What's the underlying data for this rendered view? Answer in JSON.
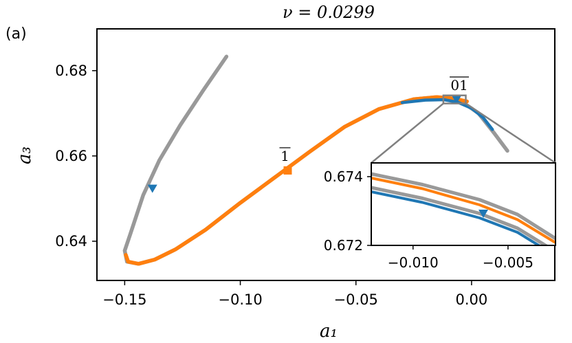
{
  "panel_label": "(a)",
  "chart_data": {
    "type": "line",
    "title": "ν = 0.0299",
    "xlabel": "a₁",
    "ylabel": "a₃",
    "xlim": [
      -0.162,
      0.036
    ],
    "ylim": [
      0.6308,
      0.6898
    ],
    "xticks": [
      -0.15,
      -0.1,
      -0.05,
      0.0
    ],
    "xtick_labels": [
      "−0.15",
      "−0.10",
      "−0.05",
      "0.00"
    ],
    "yticks": [
      0.64,
      0.66,
      0.68
    ],
    "ytick_labels": [
      "0.64",
      "0.66",
      "0.68"
    ],
    "grid": false,
    "colors": {
      "gray": "#999999",
      "orange": "#ff7f0e",
      "blue": "#1f77b4",
      "frame": "#808080"
    },
    "series": [
      {
        "color": "gray",
        "points": [
          [
            -0.106,
            0.6833
          ],
          [
            -0.116,
            0.6754
          ],
          [
            -0.126,
            0.6672
          ],
          [
            -0.135,
            0.659
          ],
          [
            -0.142,
            0.6508
          ],
          [
            -0.1475,
            0.6418
          ],
          [
            -0.15,
            0.6378
          ],
          [
            -0.149,
            0.6352
          ],
          [
            -0.144,
            0.6347
          ],
          [
            -0.137,
            0.6357
          ],
          [
            -0.128,
            0.6381
          ],
          [
            -0.115,
            0.6427
          ],
          [
            -0.1,
            0.649
          ],
          [
            -0.085,
            0.655
          ],
          [
            -0.07,
            0.661
          ],
          [
            -0.055,
            0.6668
          ],
          [
            -0.04,
            0.671
          ],
          [
            -0.025,
            0.6733
          ],
          [
            -0.015,
            0.6738
          ],
          [
            -0.005,
            0.673
          ],
          [
            0.003,
            0.67
          ],
          [
            0.01,
            0.6652
          ],
          [
            0.0155,
            0.6612
          ]
        ]
      },
      {
        "color": "orange",
        "points": [
          [
            -0.1495,
            0.6368
          ],
          [
            -0.1485,
            0.6352
          ],
          [
            -0.144,
            0.6347
          ],
          [
            -0.137,
            0.6357
          ],
          [
            -0.128,
            0.6381
          ],
          [
            -0.115,
            0.6427
          ],
          [
            -0.1,
            0.649
          ],
          [
            -0.085,
            0.655
          ],
          [
            -0.07,
            0.661
          ],
          [
            -0.055,
            0.6668
          ],
          [
            -0.04,
            0.671
          ],
          [
            -0.025,
            0.6733
          ],
          [
            -0.015,
            0.6738
          ],
          [
            -0.008,
            0.6735
          ],
          [
            -0.002,
            0.6728
          ]
        ]
      },
      {
        "color": "blue",
        "points": [
          [
            -0.03,
            0.6725
          ],
          [
            -0.02,
            0.6731
          ],
          [
            -0.012,
            0.6732
          ],
          [
            -0.006,
            0.6726
          ],
          [
            0.0,
            0.6712
          ],
          [
            0.005,
            0.669
          ],
          [
            0.009,
            0.6662
          ]
        ]
      }
    ],
    "markers": [
      {
        "shape": "triangle-down",
        "color": "blue",
        "x": -0.138,
        "y": 0.6523
      },
      {
        "shape": "square",
        "color": "orange",
        "x": -0.0795,
        "y": 0.6566,
        "label": "1"
      },
      {
        "shape": "triangle-down",
        "color": "blue",
        "x": -0.0065,
        "y": 0.6732,
        "label": "01"
      }
    ],
    "zoom_box": {
      "xlim": [
        -0.0122,
        -0.0025
      ],
      "ylim": [
        0.6723,
        0.6742
      ]
    },
    "inset": {
      "xlim": [
        -0.0122,
        -0.0025
      ],
      "ylim": [
        0.672,
        0.6744
      ],
      "xticks": [
        -0.01,
        -0.005
      ],
      "xtick_labels": [
        "−0.010",
        "−0.005"
      ],
      "yticks": [
        0.672,
        0.674
      ],
      "ytick_labels": [
        "0.672",
        "0.674"
      ],
      "series": [
        {
          "color": "gray",
          "points": [
            [
              -0.0122,
              0.67408
            ],
            [
              -0.0095,
              0.67377
            ],
            [
              -0.0065,
              0.67333
            ],
            [
              -0.0045,
              0.6729
            ],
            [
              -0.0025,
              0.6722
            ]
          ]
        },
        {
          "color": "orange",
          "points": [
            [
              -0.0122,
              0.67396
            ],
            [
              -0.0095,
              0.67365
            ],
            [
              -0.0065,
              0.67318
            ],
            [
              -0.0045,
              0.67275
            ],
            [
              -0.0025,
              0.67208
            ]
          ]
        },
        {
          "color": "gray",
          "points": [
            [
              -0.0122,
              0.67368
            ],
            [
              -0.0095,
              0.67337
            ],
            [
              -0.0065,
              0.67293
            ],
            [
              -0.0045,
              0.6725
            ],
            [
              -0.0025,
              0.67182
            ]
          ]
        },
        {
          "color": "blue",
          "points": [
            [
              -0.0122,
              0.67356
            ],
            [
              -0.0095,
              0.67325
            ],
            [
              -0.0065,
              0.6728
            ],
            [
              -0.0045,
              0.67238
            ],
            [
              -0.0025,
              0.6717
            ]
          ]
        }
      ],
      "markers": [
        {
          "shape": "triangle-down",
          "color": "blue",
          "x": -0.0063,
          "y": 0.67292
        }
      ]
    }
  }
}
